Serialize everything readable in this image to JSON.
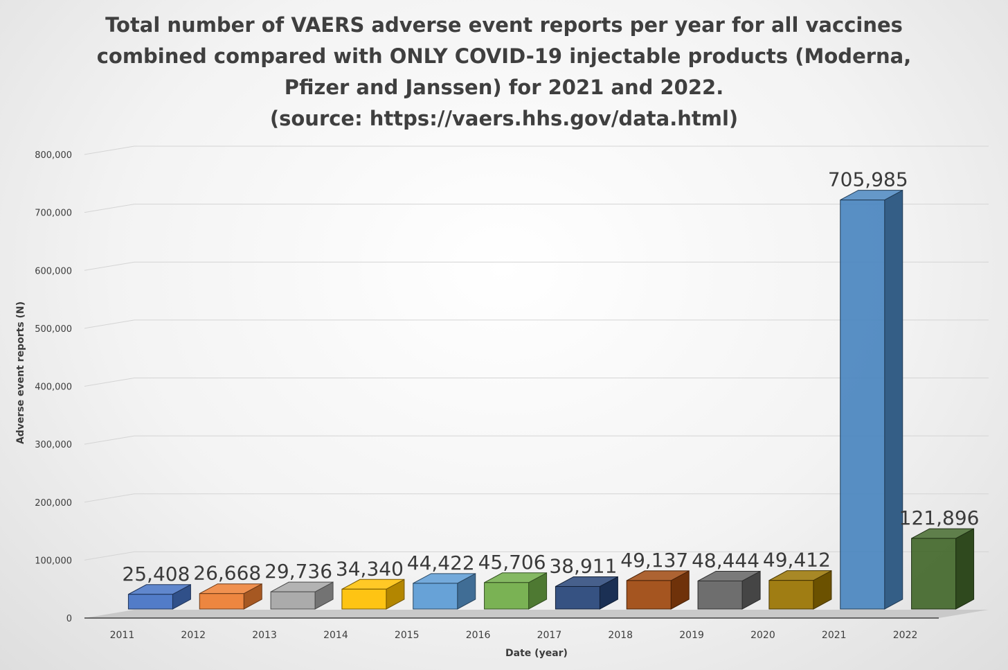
{
  "chart_data": {
    "type": "bar",
    "title": "Total number of VAERS adverse event reports per year for all vaccines combined compared with ONLY COVID-19 injectable products (Moderna, Pfizer and Janssen) for 2021 and 2022. (source: https://vaers.hhs.gov/data.html)",
    "title_lines": [
      "Total number of VAERS adverse event reports per year for all vaccines",
      "combined compared with ONLY COVID-19 injectable products (Moderna,",
      "Pfizer and Janssen) for 2021 and 2022.",
      "(source: https://vaers.hhs.gov/data.html)"
    ],
    "xlabel": "Date (year)",
    "ylabel": "Adverse event reports (N)",
    "categories": [
      "2011",
      "2012",
      "2013",
      "2014",
      "2015",
      "2016",
      "2017",
      "2018",
      "2019",
      "2020",
      "2021",
      "2022"
    ],
    "values": [
      25408,
      26668,
      29736,
      34340,
      44422,
      45706,
      38911,
      49137,
      48444,
      49412,
      705985,
      121896
    ],
    "data_labels": [
      "25,408",
      "26,668",
      "29,736",
      "34,340",
      "44,422",
      "45,706",
      "38,911",
      "49,137",
      "48,444",
      "49,412",
      "705,985",
      "121,896"
    ],
    "colors": [
      "#4472c4",
      "#ed7d31",
      "#a5a5a5",
      "#ffc000",
      "#5b9bd5",
      "#70ad47",
      "#264478",
      "#9e480e",
      "#636363",
      "#997300",
      "#4a86bf",
      "#43682b"
    ],
    "ylim": [
      0,
      800000
    ],
    "yticks": [
      0,
      100000,
      200000,
      300000,
      400000,
      500000,
      600000,
      700000,
      800000
    ],
    "ytick_labels": [
      "0",
      "100,000",
      "200,000",
      "300,000",
      "400,000",
      "500,000",
      "600,000",
      "700,000",
      "800,000"
    ],
    "grid": true,
    "style": "3d-column"
  }
}
